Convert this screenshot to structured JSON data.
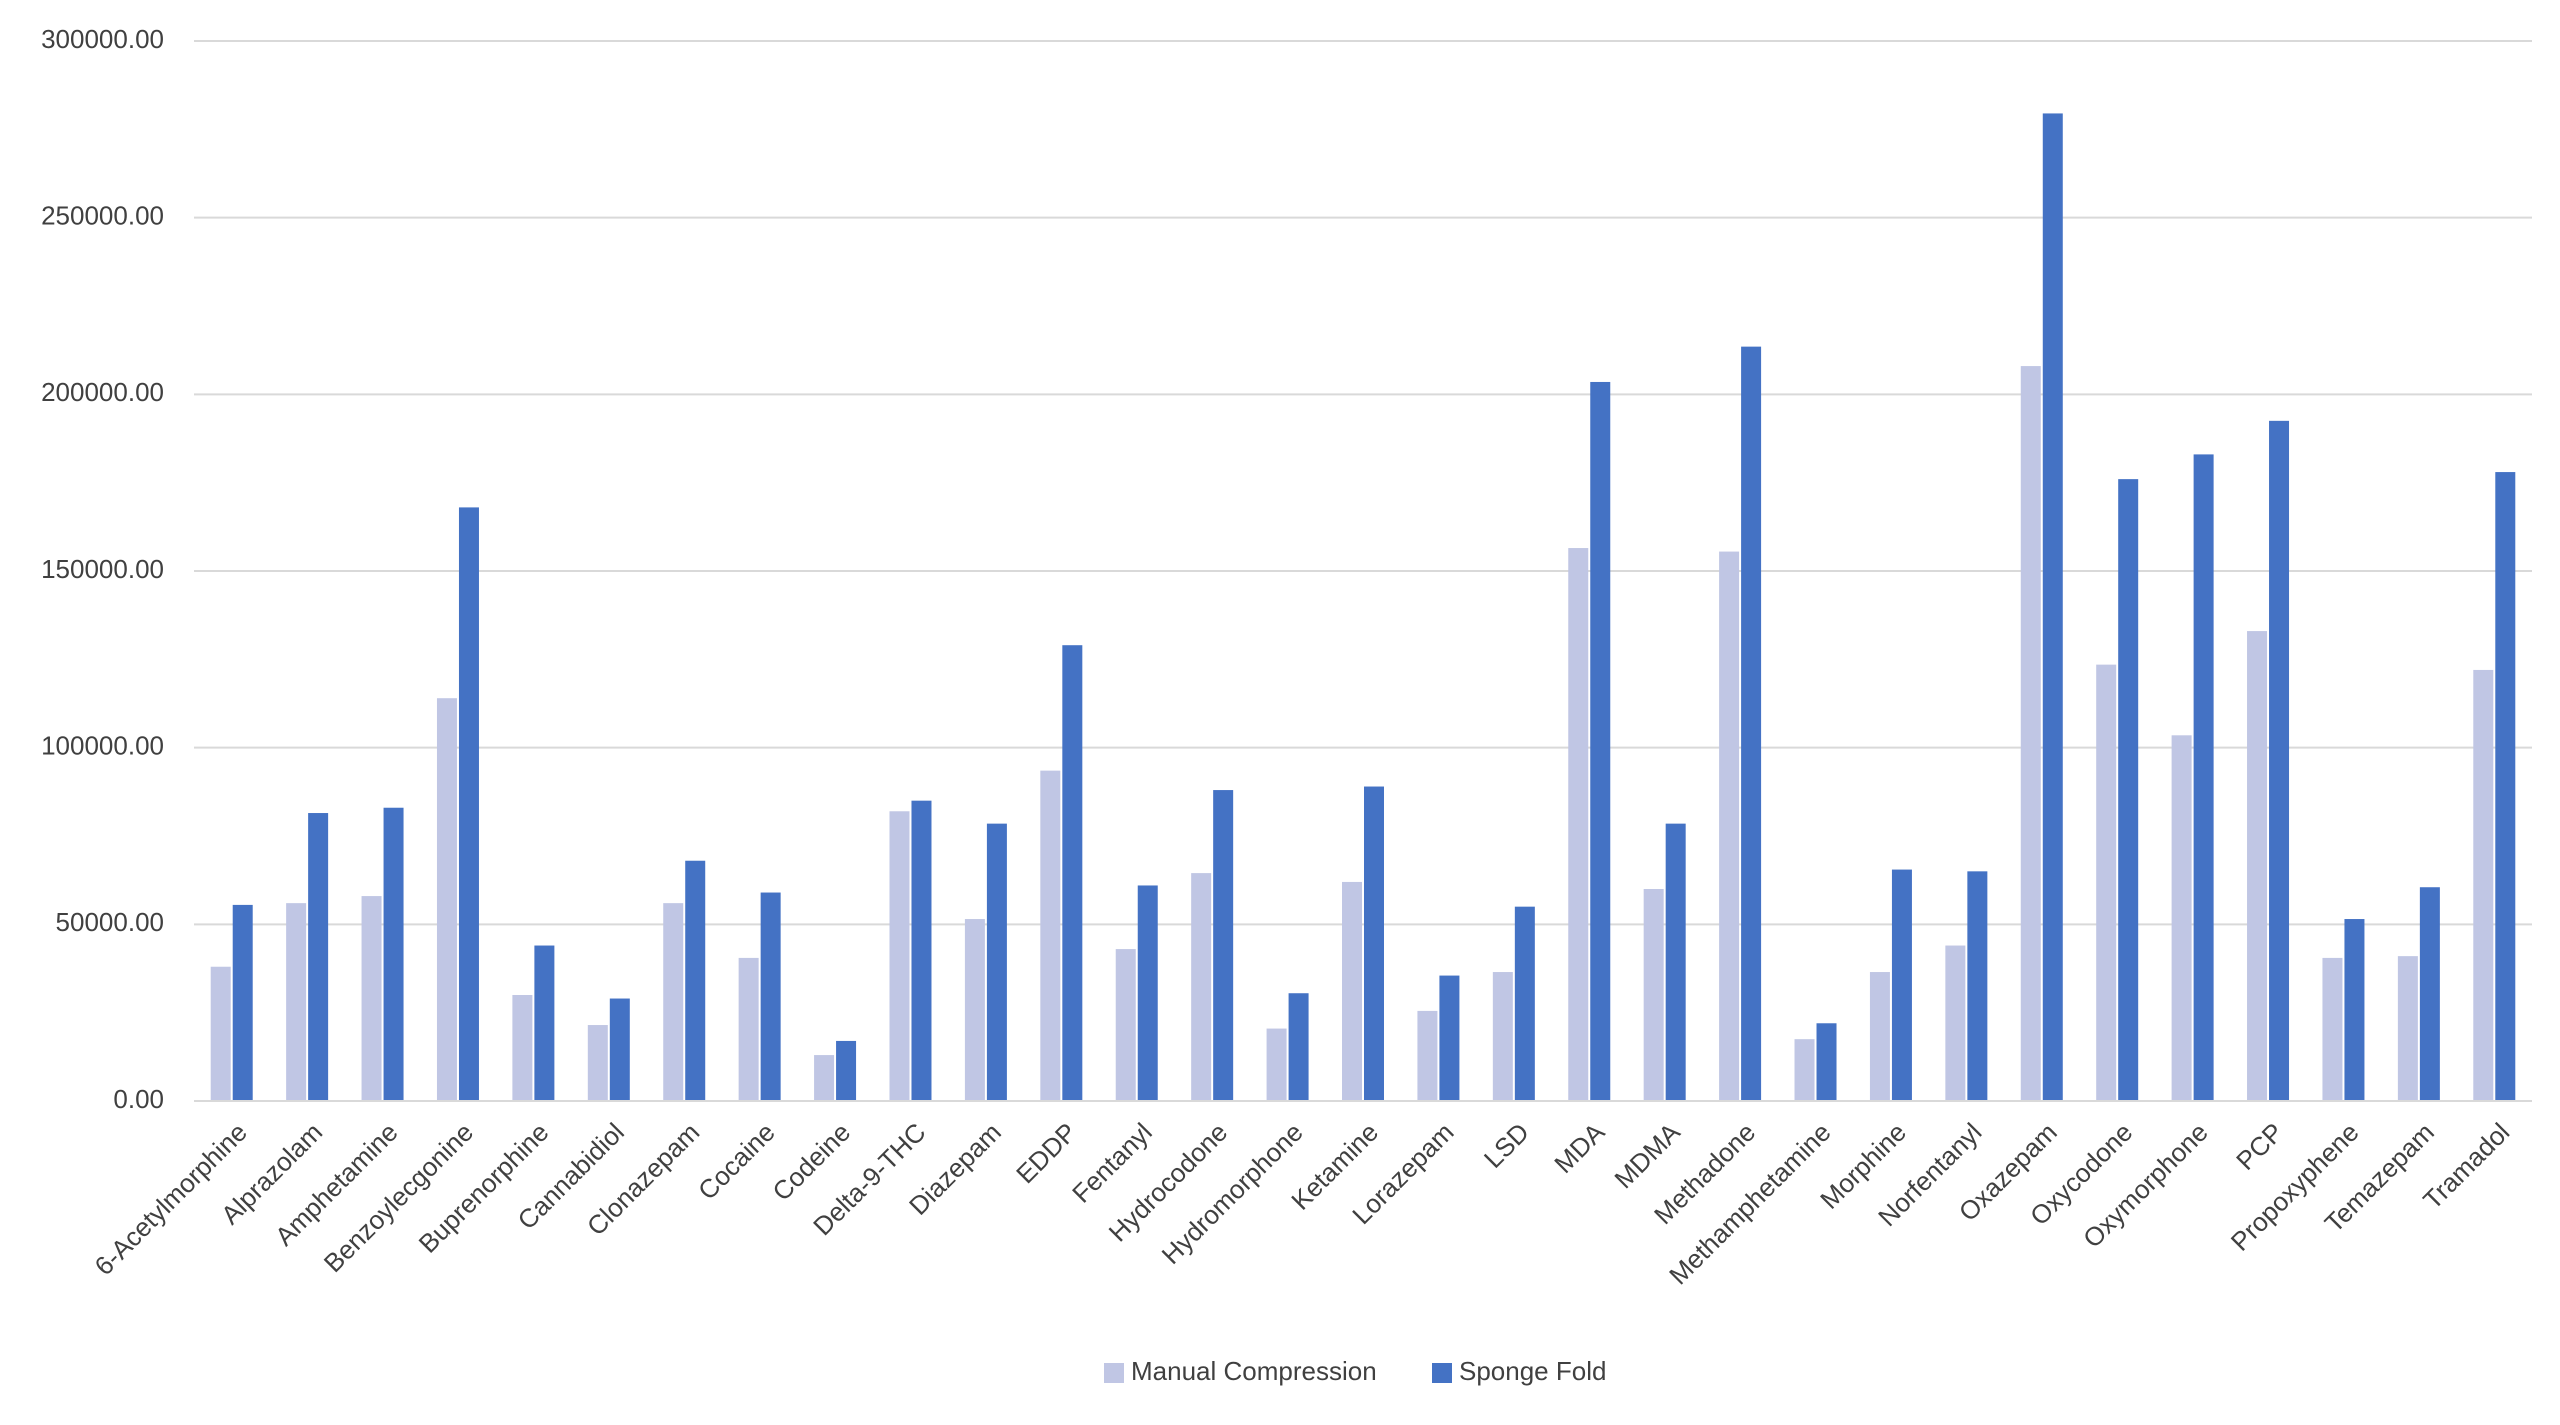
{
  "chart_data": {
    "type": "bar",
    "categories": [
      "6-Acetylmorphine",
      "Alprazolam",
      "Amphetamine",
      "Benzoylecgonine",
      "Buprenorphine",
      "Cannabidiol",
      "Clonazepam",
      "Cocaine",
      "Codeine",
      "Delta-9-THC",
      "Diazepam",
      "EDDP",
      "Fentanyl",
      "Hydrocodone",
      "Hydromorphone",
      "Ketamine",
      "Lorazepam",
      "LSD",
      "MDA",
      "MDMA",
      "Methadone",
      "Methamphetamine",
      "Morphine",
      "Norfentanyl",
      "Oxazepam",
      "Oxycodone",
      "Oxymorphone",
      "PCP",
      "Propoxyphene",
      "Temazepam",
      "Tramadol"
    ],
    "series": [
      {
        "name": "Manual Compression",
        "color": "#c0c6e4",
        "values": [
          38000,
          56000,
          58000,
          114000,
          30000,
          21500,
          56000,
          40500,
          13000,
          82000,
          51500,
          93500,
          43000,
          64500,
          20500,
          62000,
          25500,
          36500,
          156500,
          60000,
          155500,
          17500,
          36500,
          44000,
          208000,
          123500,
          103500,
          133000,
          40500,
          41000,
          122000
        ]
      },
      {
        "name": "Sponge Fold",
        "color": "#4472c4",
        "values": [
          55500,
          81500,
          83000,
          168000,
          44000,
          29000,
          68000,
          59000,
          17000,
          85000,
          78500,
          129000,
          61000,
          88000,
          30500,
          89000,
          35500,
          55000,
          203500,
          78500,
          213500,
          22000,
          65500,
          65000,
          279500,
          176000,
          183000,
          192500,
          51500,
          60500,
          178000
        ]
      }
    ],
    "ylim": [
      0,
      300000
    ],
    "yticks": [
      {
        "value": 0,
        "label": "0.00"
      },
      {
        "value": 50000,
        "label": "50000.00"
      },
      {
        "value": 100000,
        "label": "100000.00"
      },
      {
        "value": 150000,
        "label": "150000.00"
      },
      {
        "value": 200000,
        "label": "200000.00"
      },
      {
        "value": 250000,
        "label": "250000.00"
      },
      {
        "value": 300000,
        "label": "300000.00"
      }
    ],
    "grid": true,
    "legend": "bottom"
  }
}
